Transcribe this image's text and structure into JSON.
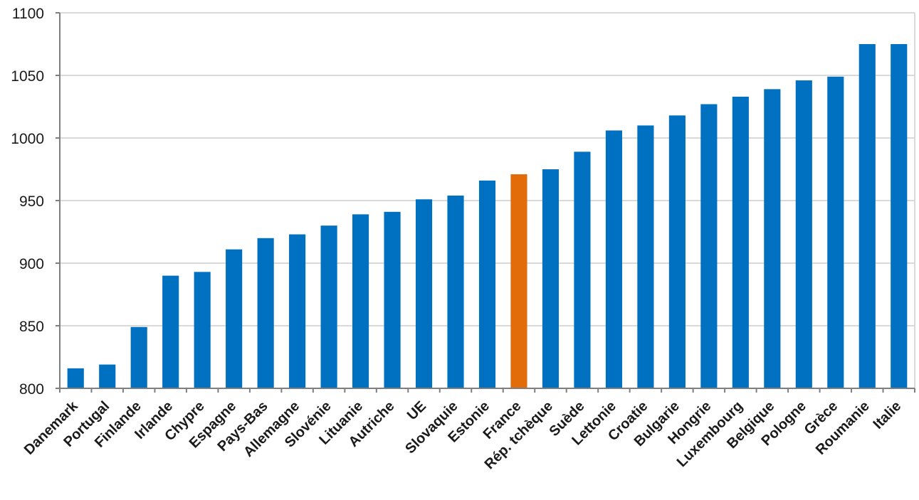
{
  "chart_data": {
    "type": "bar",
    "title": "",
    "xlabel": "",
    "ylabel": "",
    "ylim": [
      800,
      1100
    ],
    "yticks": [
      800,
      850,
      900,
      950,
      1000,
      1050,
      1100
    ],
    "grid": true,
    "legend": "none",
    "categories": [
      "Danemark",
      "Portugal",
      "Finlande",
      "Irlande",
      "Chypre",
      "Espagne",
      "Pays-Bas",
      "Allemagne",
      "Slovénie",
      "Lituanie",
      "Autriche",
      "UE",
      "Slovaquie",
      "Estonie",
      "France",
      "Rép. tchèque",
      "Suède",
      "Lettonie",
      "Croatie",
      "Bulgarie",
      "Hongrie",
      "Luxembourg",
      "Belgique",
      "Pologne",
      "Grèce",
      "Roumanie",
      "Italie"
    ],
    "values": [
      816,
      819,
      849,
      890,
      893,
      911,
      920,
      923,
      930,
      939,
      941,
      951,
      954,
      966,
      971,
      975,
      989,
      1006,
      1010,
      1018,
      1027,
      1033,
      1039,
      1046,
      1049,
      1075,
      1075
    ],
    "highlight": {
      "category": "France",
      "color": "#E36C0A"
    },
    "colors": {
      "bar": "#0070C0",
      "highlight": "#E36C0A",
      "grid": "#D9D9D9",
      "axis": "#7F7F7F"
    }
  }
}
